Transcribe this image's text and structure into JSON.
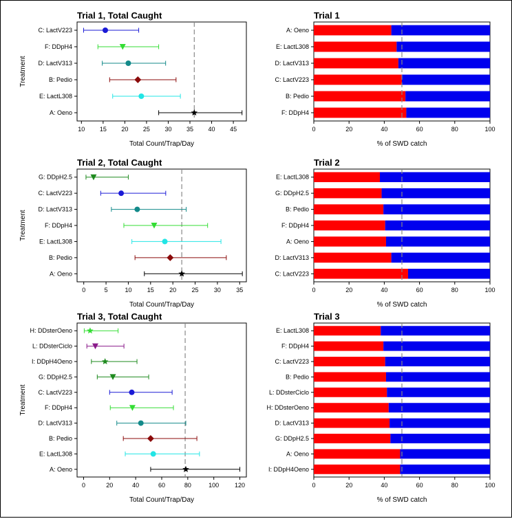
{
  "chart_data": [
    {
      "type": "dot_errorbar",
      "title": "Trial 1, Total Caught",
      "xlabel": "Total Count/Trap/Day",
      "ylabel": "Treatment",
      "xlim": [
        9,
        48
      ],
      "xticks": [
        10,
        15,
        20,
        25,
        30,
        35,
        40,
        45
      ],
      "reference_line": 36,
      "categories": [
        "C: LactV223",
        "F: DDpH4",
        "D: LactV313",
        "B: Pedio",
        "E: LactL308",
        "A: Oeno"
      ],
      "values": [
        15.5,
        19.5,
        20.8,
        23.0,
        23.8,
        36.0
      ],
      "lower": [
        10.5,
        13.8,
        14.8,
        16.5,
        17.2,
        27.8
      ],
      "upper": [
        23.2,
        27.8,
        29.4,
        31.8,
        32.8,
        47.0
      ],
      "markers": [
        "circle",
        "triangle-down",
        "circle",
        "diamond",
        "circle",
        "star"
      ],
      "colors": [
        "#1a1ad6",
        "#33dd33",
        "#138a8a",
        "#8b0a0a",
        "#22e5e5",
        "#000000"
      ]
    },
    {
      "type": "stacked_bar_horizontal",
      "title": "Trial 1",
      "xlabel": "% of SWD catch",
      "xlim": [
        0,
        100
      ],
      "xticks": [
        0,
        20,
        40,
        60,
        80,
        100
      ],
      "reference_line": 50,
      "categories": [
        "A: Oeno",
        "E: LactL308",
        "D: LactV313",
        "C: LactV223",
        "B: Pedio",
        "F: DDpH4"
      ],
      "values": [
        44,
        47,
        48,
        50,
        52,
        52.5
      ],
      "colors": [
        "#ff0000",
        "#0000ee"
      ]
    },
    {
      "type": "dot_errorbar",
      "title": "Trial 2, Total Caught",
      "xlabel": "Total Count/Trap/Day",
      "ylabel": "Treatment",
      "xlim": [
        -1.5,
        36.5
      ],
      "xticks": [
        0,
        5,
        10,
        15,
        20,
        25,
        30,
        35
      ],
      "reference_line": 22,
      "categories": [
        "G: DDpH2.5",
        "C: LactV223",
        "D: LactV313",
        "F: DDpH4",
        "E: LactL308",
        "B: Pedio",
        "A: Oeno"
      ],
      "values": [
        2.2,
        8.4,
        12.0,
        15.8,
        18.2,
        19.4,
        22.0
      ],
      "lower": [
        0.5,
        3.8,
        6.2,
        9.0,
        10.8,
        11.5,
        13.6
      ],
      "upper": [
        10.0,
        18.4,
        23.0,
        27.8,
        30.8,
        32.0,
        35.6
      ],
      "markers": [
        "triangle-down",
        "circle",
        "circle",
        "triangle-down",
        "circle",
        "diamond",
        "star"
      ],
      "colors": [
        "#1e8a1e",
        "#1a1ad6",
        "#138a8a",
        "#33dd33",
        "#22e5e5",
        "#8b0a0a",
        "#000000"
      ]
    },
    {
      "type": "stacked_bar_horizontal",
      "title": "Trial 2",
      "xlabel": "% of SWD catch",
      "xlim": [
        0,
        100
      ],
      "xticks": [
        0,
        20,
        40,
        60,
        80,
        100
      ],
      "reference_line": 50,
      "categories": [
        "E: LactL308",
        "G: DDpH2.5",
        "B: Pedio",
        "F: DDpH4",
        "A: Oeno",
        "D: LactV313",
        "C: LactV223"
      ],
      "values": [
        37.5,
        38.5,
        39.5,
        40.5,
        41,
        44,
        53.5
      ],
      "colors": [
        "#ff0000",
        "#0000ee"
      ]
    },
    {
      "type": "dot_errorbar",
      "title": "Trial 3, Total Caught",
      "xlabel": "Total Count/Trap/Day",
      "ylabel": "Treatment",
      "xlim": [
        -5,
        125
      ],
      "xticks": [
        0,
        20,
        40,
        60,
        80,
        100,
        120
      ],
      "reference_line": 78,
      "categories": [
        "H: DDsterOeno",
        "L: DDsterCiclo",
        "I: DDpH4Oeno",
        "G: DDpH2.5",
        "C: LactV223",
        "F: DDpH4",
        "D: LactV313",
        "B: Pedio",
        "E: LactL308",
        "A: Oeno"
      ],
      "values": [
        5,
        9,
        16.5,
        22.5,
        37,
        37.5,
        44,
        51.5,
        53.5,
        78.5
      ],
      "lower": [
        0.5,
        2.5,
        6,
        10.5,
        20,
        20.5,
        25.5,
        30.5,
        32,
        51.5
      ],
      "upper": [
        26.5,
        31,
        41,
        50,
        68,
        69,
        78.5,
        87,
        89,
        120
      ],
      "markers": [
        "star",
        "triangle-down",
        "star",
        "triangle-down",
        "circle",
        "triangle-down",
        "circle",
        "diamond",
        "circle",
        "star"
      ],
      "colors": [
        "#33dd33",
        "#8a1a8a",
        "#1e8a1e",
        "#1e8a1e",
        "#1a1ad6",
        "#33dd33",
        "#138a8a",
        "#8b0a0a",
        "#22e5e5",
        "#000000"
      ]
    },
    {
      "type": "stacked_bar_horizontal",
      "title": "Trial 3",
      "xlabel": "% of SWD catch",
      "xlim": [
        0,
        100
      ],
      "xticks": [
        0,
        20,
        40,
        60,
        80,
        100
      ],
      "reference_line": 50,
      "categories": [
        "E: LactL308",
        "F: DDpH4",
        "C: LactV223",
        "B: Pedio",
        "L: DDsterCiclo",
        "H: DDsterOeno",
        "D: LactV313",
        "G: DDpH2.5",
        "A: Oeno",
        "I: DDpH4Oeno"
      ],
      "values": [
        38,
        39.5,
        40.5,
        41,
        41.5,
        42.5,
        43,
        43.5,
        49,
        49
      ],
      "colors": [
        "#ff0000",
        "#0000ee"
      ]
    }
  ]
}
